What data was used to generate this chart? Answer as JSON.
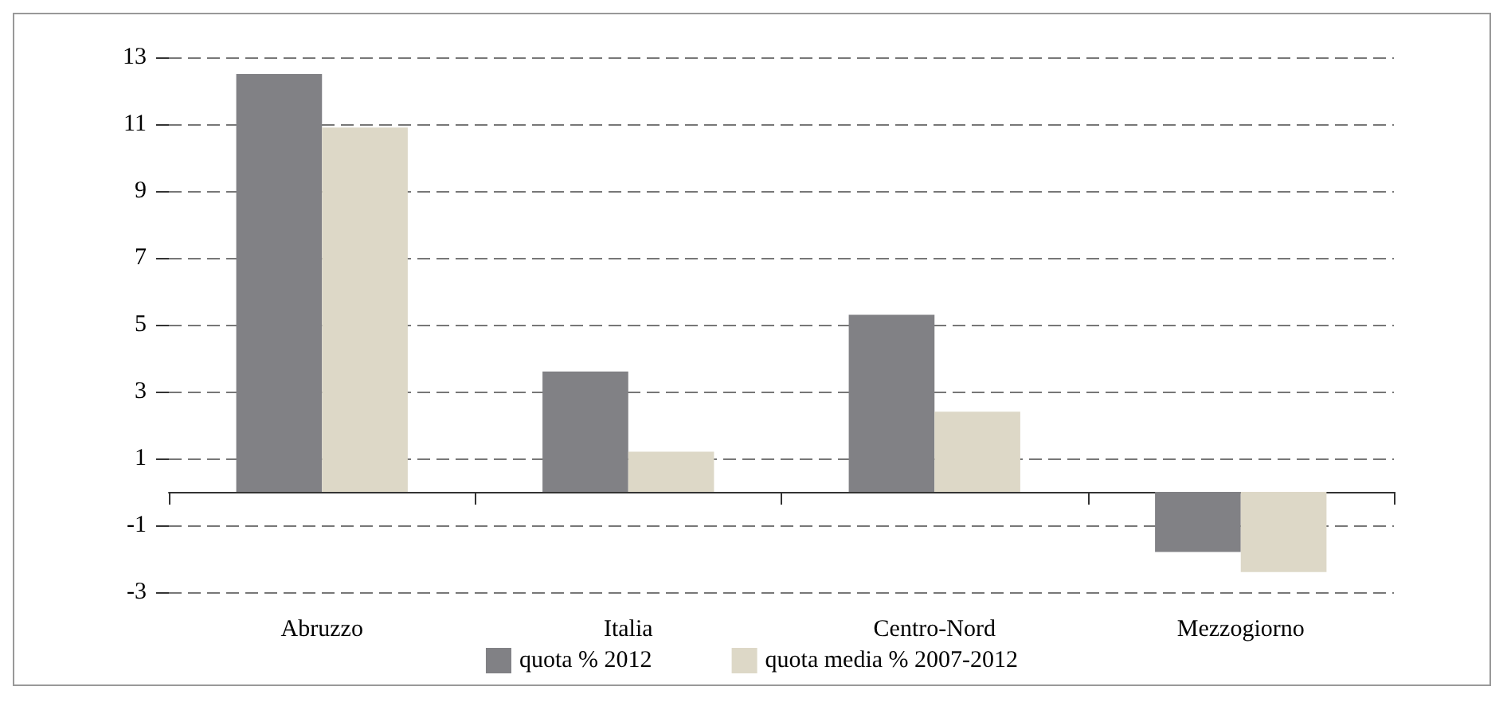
{
  "chart_data": {
    "type": "bar",
    "categories": [
      "Abruzzo",
      "Italia",
      "Centro-Nord",
      "Mezzogiorno"
    ],
    "series": [
      {
        "name": "quota % 2012",
        "color": "#818185",
        "values": [
          12.5,
          3.6,
          5.3,
          -1.8
        ]
      },
      {
        "name": "quota media % 2007-2012",
        "color": "#ddd8c7",
        "values": [
          10.9,
          1.2,
          2.4,
          -2.4
        ]
      }
    ],
    "ylim": [
      -3,
      13
    ],
    "yticks": [
      -3,
      -1,
      1,
      3,
      5,
      7,
      9,
      11,
      13
    ],
    "grid": "y",
    "legend": "bottom"
  }
}
